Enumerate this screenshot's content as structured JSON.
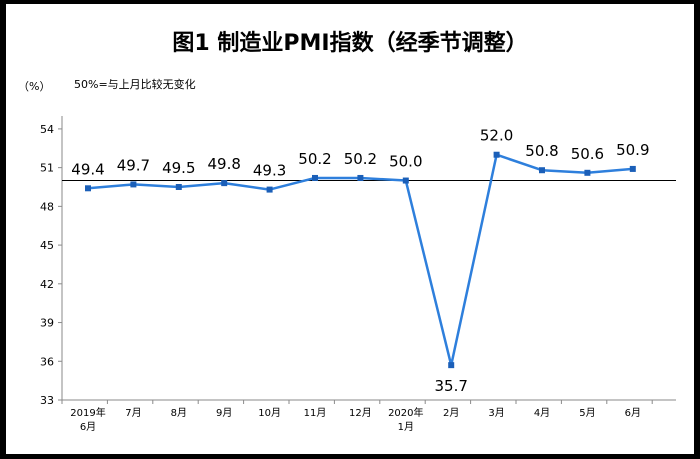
{
  "chart_data": {
    "type": "line",
    "title": "图1  制造业PMI指数（经季节调整）",
    "unit_label": "（%）",
    "reference_note": "50%=与上月比较无变化",
    "reference_value": 50,
    "categories": [
      [
        "2019年",
        "6月"
      ],
      [
        "7月"
      ],
      [
        "8月"
      ],
      [
        "9月"
      ],
      [
        "10月"
      ],
      [
        "11月"
      ],
      [
        "12月"
      ],
      [
        "2020年",
        "1月"
      ],
      [
        "2月"
      ],
      [
        "3月"
      ],
      [
        "4月"
      ],
      [
        "5月"
      ],
      [
        "6月"
      ]
    ],
    "values": [
      49.4,
      49.7,
      49.5,
      49.8,
      49.3,
      50.2,
      50.2,
      50.0,
      35.7,
      52.0,
      50.8,
      50.6,
      50.9
    ],
    "data_labels": [
      "49.4",
      "49.7",
      "49.5",
      "49.8",
      "49.3",
      "50.2",
      "50.2",
      "50.0",
      "35.7",
      "52.0",
      "50.8",
      "50.6",
      "50.9"
    ],
    "label_below": [
      false,
      false,
      false,
      false,
      false,
      false,
      false,
      false,
      true,
      false,
      false,
      false,
      false
    ],
    "yticks": [
      "54",
      "51",
      "48",
      "45",
      "42",
      "39",
      "36",
      "33"
    ],
    "ylim": [
      33,
      55
    ],
    "grid": false,
    "line_color": "#2e7fdc",
    "marker_color": "#1b5fb8",
    "axis_color": "#8a8a8a"
  }
}
